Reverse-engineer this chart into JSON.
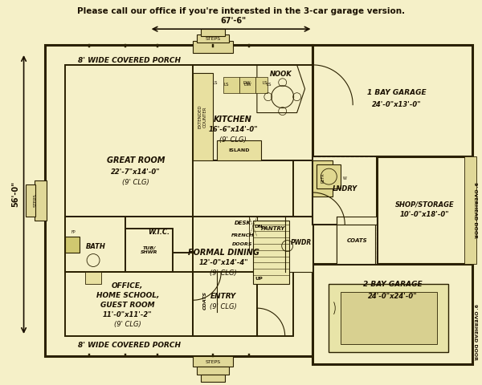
{
  "bg_color": "#f5f0c8",
  "wall_color": "#2a2000",
  "line_color": "#2a2000",
  "text_color": "#1a1000",
  "title_text": "Please call our office if you're interested in the 3-car garage version.",
  "dim_width": "67'-6\"",
  "dim_height": "56'-0\""
}
